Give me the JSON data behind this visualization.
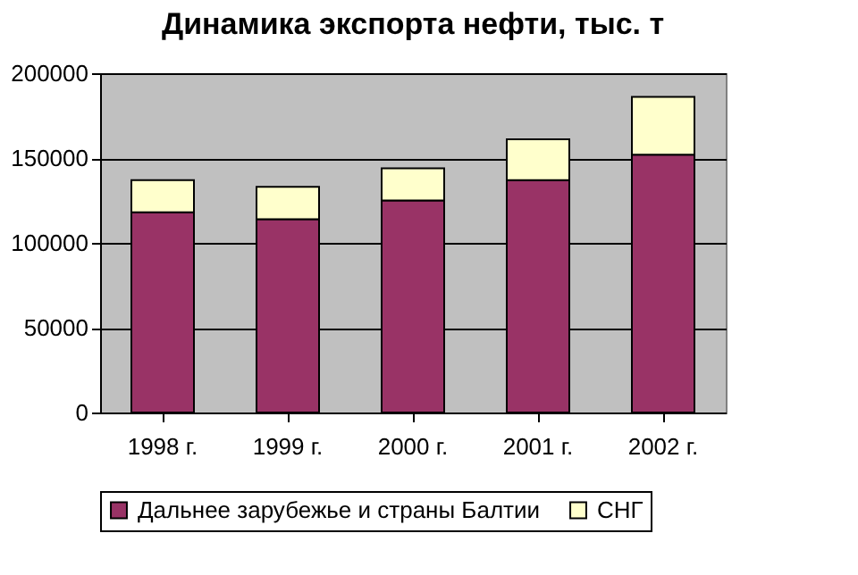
{
  "chart_data": {
    "type": "bar",
    "title": "Динамика экспорта нефти, тыс. т",
    "categories": [
      "1998 г.",
      "1999 г.",
      "2000 г.",
      "2001 г.",
      "2002 г."
    ],
    "series": [
      {
        "name": "Дальнее зарубежье и страны Балтии",
        "color": "#993366",
        "values": [
          118000,
          114000,
          125000,
          137000,
          152000
        ]
      },
      {
        "name": "СНГ",
        "color": "#ffffcc",
        "values": [
          19000,
          19000,
          19000,
          24000,
          34000
        ]
      }
    ],
    "stacked": true,
    "ylim": [
      0,
      200000
    ],
    "yticks": [
      0,
      50000,
      100000,
      150000,
      200000
    ],
    "grid": "y",
    "legend": "bottom"
  }
}
